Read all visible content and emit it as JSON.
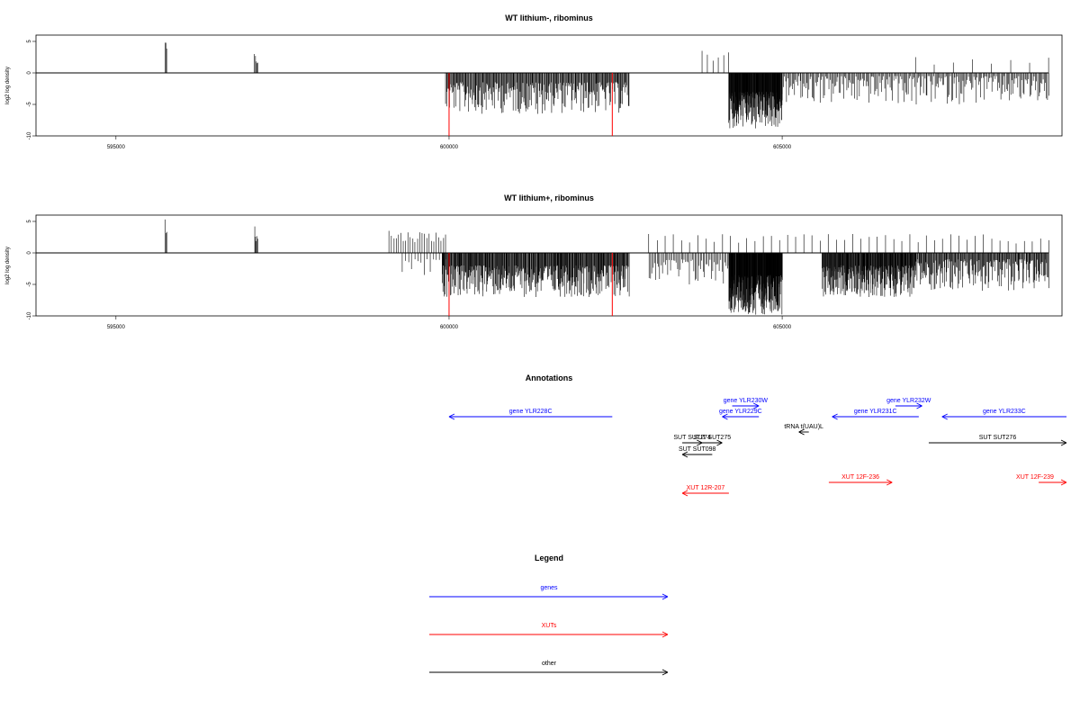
{
  "colors": {
    "gene": "#0000ff",
    "xut": "#ff0000",
    "other": "#000000",
    "highlight": "#ff0000"
  },
  "chart_data": [
    {
      "type": "bar",
      "title": "WT lithium-, ribominus",
      "ylabel": "log2 log density",
      "ylim": [
        -10,
        6
      ],
      "yticks": [
        5,
        0,
        -5,
        -10
      ],
      "xlim": [
        593800,
        609200
      ],
      "xticks": [
        595000,
        600000,
        605000
      ],
      "baseline": [
        593800,
        609000
      ],
      "highlight_x": [
        600000,
        602450
      ],
      "highlight_y": -10,
      "segments": [
        {
          "from": 595740,
          "to": 595760,
          "min": 0,
          "max": 4.8,
          "count": 3
        },
        {
          "from": 597080,
          "to": 597130,
          "min": 0,
          "max": 3.0,
          "count": 5
        },
        {
          "from": 599950,
          "to": 602700,
          "min": -6.5,
          "max": -1.5,
          "count": 260
        },
        {
          "from": 603800,
          "to": 604200,
          "min": 0.5,
          "max": 3.5,
          "count": 6
        },
        {
          "from": 604200,
          "to": 605000,
          "min": -8.8,
          "max": -3.0,
          "count": 220
        },
        {
          "from": 605000,
          "to": 609000,
          "min": -5.0,
          "max": -0.5,
          "count": 240
        },
        {
          "from": 607000,
          "to": 609000,
          "min": 0.5,
          "max": 2.5,
          "count": 8
        }
      ]
    },
    {
      "type": "bar",
      "title": "WT lithium+, ribominus",
      "ylabel": "log2 log density",
      "ylim": [
        -10,
        6
      ],
      "yticks": [
        5,
        0,
        -5,
        -10
      ],
      "xlim": [
        593800,
        609200
      ],
      "xticks": [
        595000,
        600000,
        605000
      ],
      "baseline": [
        593800,
        609000
      ],
      "highlight_x": [
        600000,
        602450
      ],
      "highlight_y": -10,
      "segments": [
        {
          "from": 595740,
          "to": 595760,
          "min": 0,
          "max": 5.3,
          "count": 3
        },
        {
          "from": 597080,
          "to": 597130,
          "min": 0,
          "max": 4.2,
          "count": 5
        },
        {
          "from": 599100,
          "to": 599950,
          "min": 0.5,
          "max": 3.5,
          "count": 25
        },
        {
          "from": 599300,
          "to": 599950,
          "min": -3.5,
          "max": -1.0,
          "count": 15
        },
        {
          "from": 599900,
          "to": 602700,
          "min": -7.0,
          "max": -2.0,
          "count": 380
        },
        {
          "from": 603000,
          "to": 609000,
          "min": 0.5,
          "max": 3.0,
          "count": 50
        },
        {
          "from": 603000,
          "to": 604200,
          "min": -5.0,
          "max": -1.0,
          "count": 60
        },
        {
          "from": 604200,
          "to": 605000,
          "min": -9.8,
          "max": -3.5,
          "count": 260
        },
        {
          "from": 605600,
          "to": 607000,
          "min": -7.0,
          "max": -2.0,
          "count": 260
        },
        {
          "from": 607000,
          "to": 609000,
          "min": -6.0,
          "max": -1.0,
          "count": 200
        }
      ]
    }
  ],
  "annotations": {
    "title": "Annotations",
    "items": [
      {
        "label": "gene YLR228C",
        "kind": "gene",
        "start": 602450,
        "end": 600000,
        "row": 1
      },
      {
        "label": "gene YLR230W",
        "kind": "gene",
        "start": 604250,
        "end": 604650,
        "row": 0
      },
      {
        "label": "gene YLR229C",
        "kind": "gene",
        "start": 604650,
        "end": 604100,
        "row": 1
      },
      {
        "label": "gene YLR232W",
        "kind": "gene",
        "start": 606700,
        "end": 607100,
        "row": 0
      },
      {
        "label": "gene YLR231C",
        "kind": "gene",
        "start": 607050,
        "end": 605750,
        "row": 1
      },
      {
        "label": "gene YLR233C",
        "kind": "gene",
        "start": 609300,
        "end": 607400,
        "row": 1
      },
      {
        "label": "tRNA t(UAU)L",
        "kind": "other",
        "start": 605400,
        "end": 605250,
        "row": 2
      },
      {
        "label": "SUT SUT274",
        "kind": "other",
        "start": 603500,
        "end": 603800,
        "row": 3
      },
      {
        "label": "SUT SUT275",
        "kind": "other",
        "start": 603800,
        "end": 604100,
        "row": 3
      },
      {
        "label": "SUT SUT276",
        "kind": "other",
        "start": 607200,
        "end": 609400,
        "row": 3
      },
      {
        "label": "SUT SUT098",
        "kind": "other",
        "start": 603950,
        "end": 603500,
        "row": 4
      },
      {
        "label": "XUT 12R-207",
        "kind": "xut",
        "start": 604200,
        "end": 603500,
        "row": 6
      },
      {
        "label": "XUT 12F-236",
        "kind": "xut",
        "start": 605700,
        "end": 606650,
        "row": 5
      },
      {
        "label": "XUT 12F-239",
        "kind": "xut",
        "start": 608850,
        "end": 609300,
        "row": 5
      }
    ]
  },
  "legend": {
    "title": "Legend",
    "entries": [
      {
        "label": "genes",
        "kind": "gene"
      },
      {
        "label": "XUTs",
        "kind": "xut"
      },
      {
        "label": "other",
        "kind": "other"
      }
    ]
  }
}
